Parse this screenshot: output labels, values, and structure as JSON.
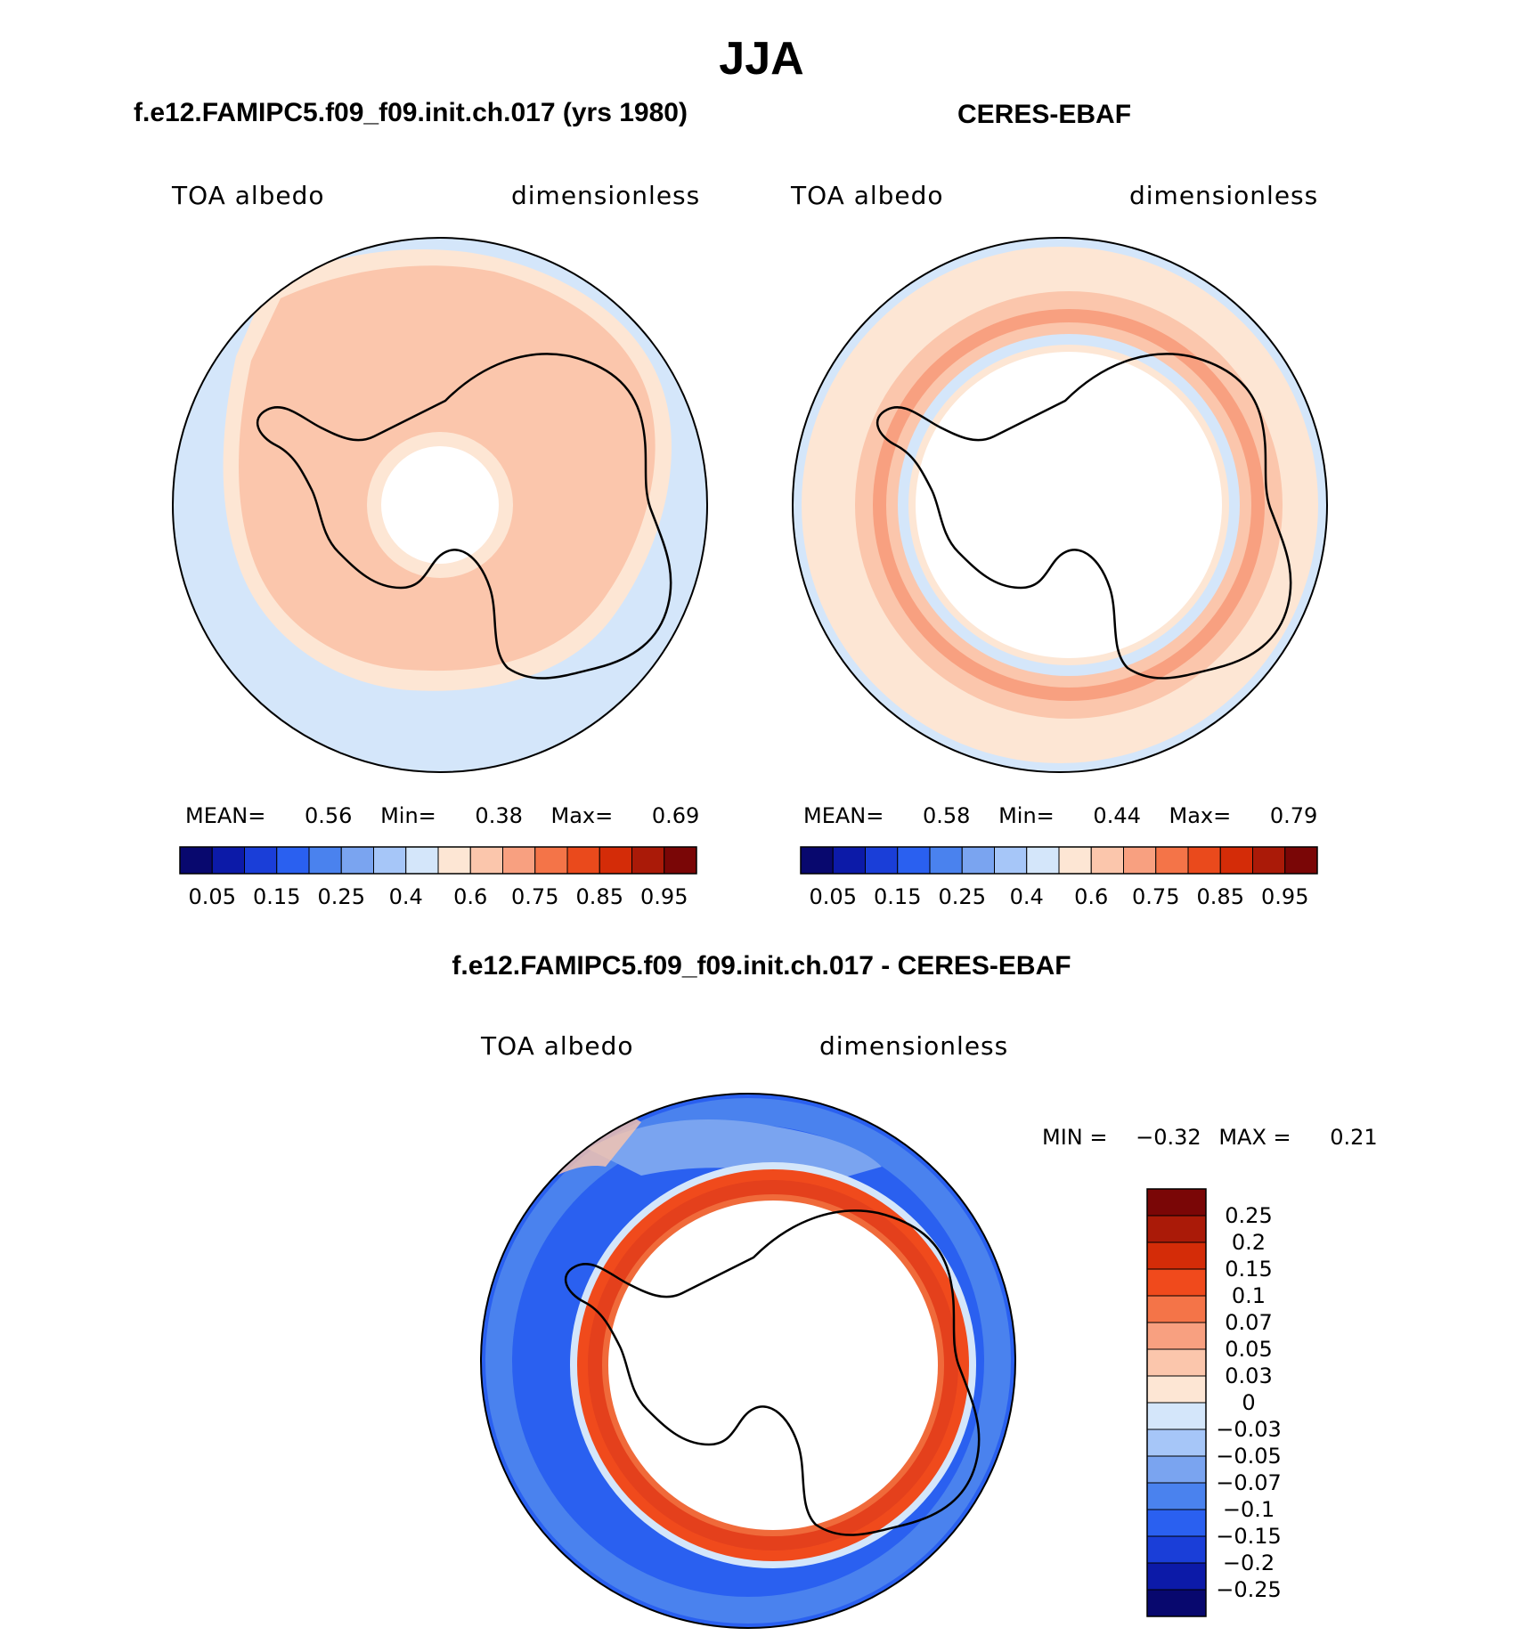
{
  "figure": {
    "season": "JJA",
    "colors": {
      "white": "#ffffff",
      "map_land_outline": "#000000",
      "ring_orange": "#f06a3a",
      "ring_red": "#e4401c"
    }
  },
  "panels": [
    {
      "id": "model",
      "title": "f.e12.FAMIPC5.f09_f09.init.ch.017 (yrs 1980)",
      "left_label": "TOA albedo",
      "right_label": "dimensionless",
      "stats": {
        "mean_label": "MEAN=",
        "mean": "0.56",
        "min_label": "Min=",
        "min": "0.38",
        "max_label": "Max=",
        "max": "0.69"
      }
    },
    {
      "id": "obs",
      "title": "CERES-EBAF",
      "left_label": "TOA albedo",
      "right_label": "dimensionless",
      "stats": {
        "mean_label": "MEAN=",
        "mean": "0.58",
        "min_label": "Min=",
        "min": "0.44",
        "max_label": "Max=",
        "max": "0.79"
      }
    },
    {
      "id": "diff",
      "title": "f.e12.FAMIPC5.f09_f09.init.ch.017 - CERES-EBAF",
      "left_label": "TOA albedo",
      "right_label": "dimensionless",
      "stats": {
        "min_label": "MIN =",
        "min": "-0.32",
        "max_label": "MAX =",
        "max": "0.21"
      }
    }
  ],
  "colorbars": {
    "abs": {
      "colors": [
        "#08086e",
        "#0c1aa8",
        "#1a3ed8",
        "#2a60f0",
        "#4a82ee",
        "#7aa4f0",
        "#a6c6f8",
        "#d4e6fa",
        "#fde6d4",
        "#fbc6ac",
        "#f8a080",
        "#f47448",
        "#ea4a1c",
        "#d42c08",
        "#aa1a08",
        "#7a0606"
      ],
      "ticks": [
        "0.05",
        "0.15",
        "0.25",
        "0.4",
        "0.6",
        "0.75",
        "0.85",
        "0.95"
      ]
    },
    "diff": {
      "colors": [
        "#7a0606",
        "#aa1a08",
        "#d42c08",
        "#f04a1c",
        "#f47448",
        "#f8a080",
        "#fbc6ac",
        "#fde6d4",
        "#d4e6fa",
        "#a6c6f8",
        "#7aa4f0",
        "#4a82ee",
        "#2a60f0",
        "#1a3ed8",
        "#0c1aa8",
        "#08086e"
      ],
      "ticks": [
        "0.25",
        "0.2",
        "0.15",
        "0.1",
        "0.07",
        "0.05",
        "0.03",
        "0",
        "-0.03",
        "-0.05",
        "-0.07",
        "-0.1",
        "-0.15",
        "-0.2",
        "-0.25"
      ]
    }
  }
}
